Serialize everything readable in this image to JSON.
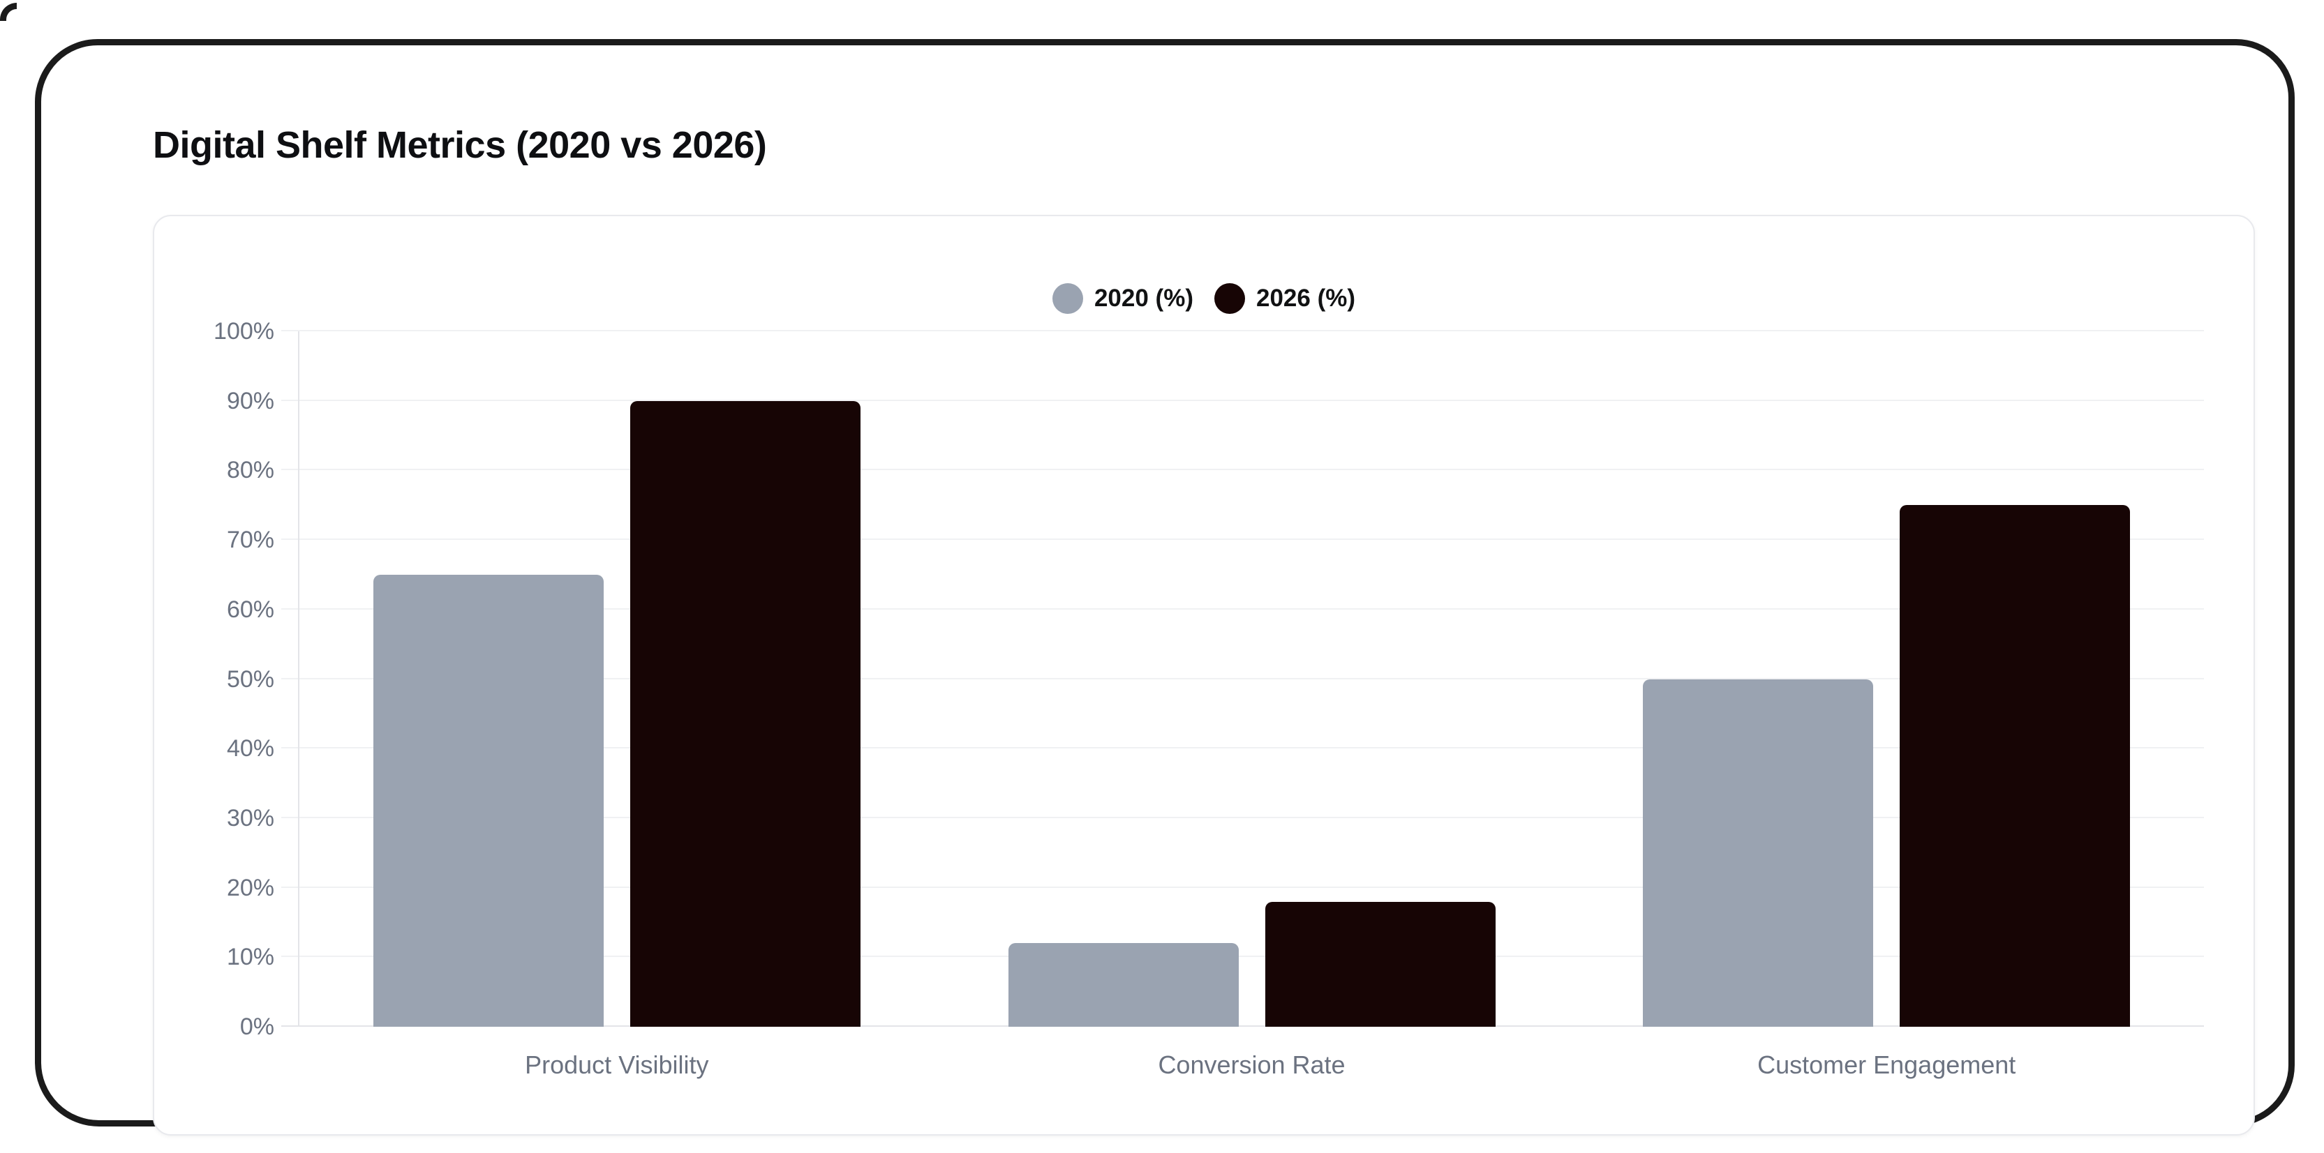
{
  "header": {
    "title": "Digital Shelf Metrics (2020 vs 2026)"
  },
  "colors": {
    "frame": "#1b1b1b",
    "card_border": "#e8e9ed",
    "gridline": "#f0f1f3",
    "axis_line": "#e3e4e8",
    "tick_text": "#6b7280",
    "series_2020": "#9aa3b1",
    "series_2026": "#170505"
  },
  "chart_data": {
    "type": "bar",
    "title": "Digital Shelf Metrics (2020 vs 2026)",
    "categories": [
      "Product Visibility",
      "Conversion Rate",
      "Customer Engagement"
    ],
    "series": [
      {
        "name": "2020 (%)",
        "color": "#9aa3b1",
        "values": [
          65,
          12,
          50
        ]
      },
      {
        "name": "2026 (%)",
        "color": "#170505",
        "values": [
          90,
          18,
          75
        ]
      }
    ],
    "xlabel": "",
    "ylabel": "",
    "ylim": [
      0,
      100
    ],
    "yticks": [
      "0%",
      "10%",
      "20%",
      "30%",
      "40%",
      "50%",
      "60%",
      "70%",
      "80%",
      "90%",
      "100%"
    ],
    "grid": true,
    "legend_position": "top-center"
  }
}
